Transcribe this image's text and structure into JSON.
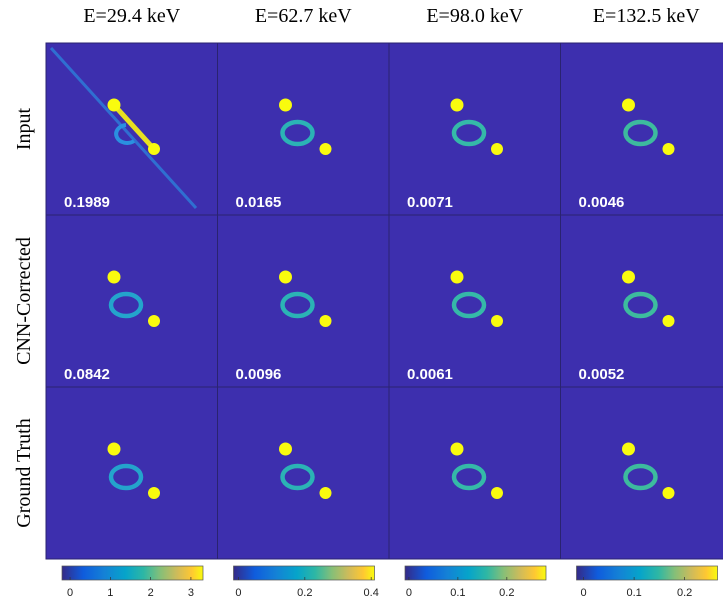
{
  "figure": {
    "columns": [
      "E=29.4 keV",
      "E=62.7 keV",
      "E=98.0 keV",
      "E=132.5 keV"
    ],
    "rows": [
      "Input",
      "CNN-Corrected",
      "Ground Truth"
    ],
    "panel_values": [
      [
        "0.1989",
        "0.0165",
        "0.0071",
        "0.0046"
      ],
      [
        "0.0842",
        "0.0096",
        "0.0061",
        "0.0052"
      ]
    ],
    "colorbars": [
      {
        "lim": [
          -0.2,
          3.3
        ],
        "ticks": [
          0,
          1,
          2,
          3
        ]
      },
      {
        "lim": [
          -0.015,
          0.41
        ],
        "ticks": [
          0,
          0.2,
          0.4
        ]
      },
      {
        "lim": [
          -0.008,
          0.28
        ],
        "ticks": [
          0,
          0.1,
          0.2
        ]
      },
      {
        "lim": [
          -0.014,
          0.265
        ],
        "ticks": [
          0,
          0.1,
          0.2
        ]
      }
    ]
  }
}
